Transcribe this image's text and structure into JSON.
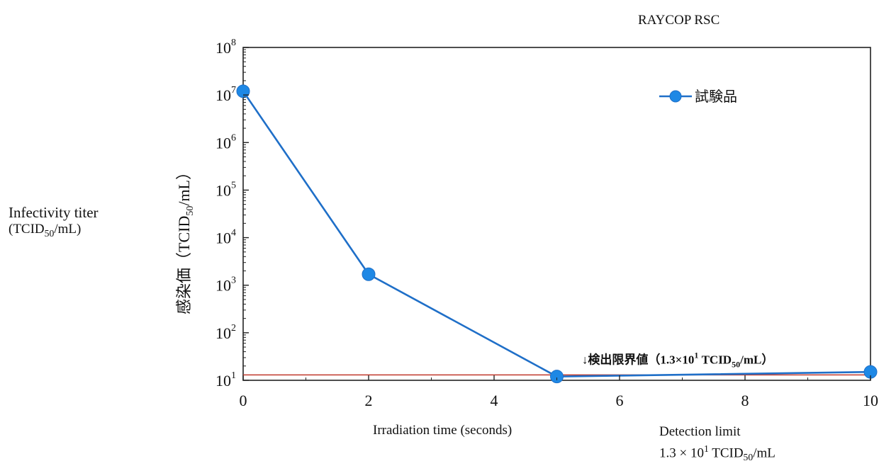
{
  "header": {
    "product": "RAYCOP RSC"
  },
  "side_label": {
    "line1": "Infectivity titer",
    "unit_base": "(TCID",
    "unit_sub": "50",
    "unit_tail": "/mL)"
  },
  "x_caption": "Irradiation time (seconds)",
  "detection_caption": {
    "line1": "Detection limit",
    "base": "1.3 × 10",
    "exp": "1",
    "unit": " TCID",
    "unit_sub": "50",
    "unit_tail": "/mL"
  },
  "colors": {
    "series": "#1f6fc8",
    "marker": "#1e88e5",
    "limit_line": "#c0392b",
    "axis": "#222222"
  },
  "chart_data": {
    "type": "line",
    "y_scale": "log",
    "xlim": [
      0,
      10
    ],
    "ylim": [
      10,
      100000000
    ],
    "x_ticks": [
      0,
      2,
      4,
      6,
      8,
      10
    ],
    "y_tick_exponents": [
      1,
      2,
      3,
      4,
      5,
      6,
      7,
      8
    ],
    "y_tick_base": "10",
    "ylabel": {
      "base": "感染価（TCID",
      "sub": "50",
      "tail": "/mL）"
    },
    "legend": {
      "label": "試験品",
      "placement": "top-right"
    },
    "series": [
      {
        "name": "試験品",
        "x": [
          0,
          2,
          5,
          10
        ],
        "y": [
          12000000,
          1700,
          12,
          15
        ]
      }
    ],
    "detection_limit": {
      "value": 13,
      "label_base": "↓検出限界値（1.3×10",
      "label_exp": "1",
      "label_unit": " TCID",
      "label_unit_sub": "50",
      "label_tail": "/mL）"
    }
  }
}
